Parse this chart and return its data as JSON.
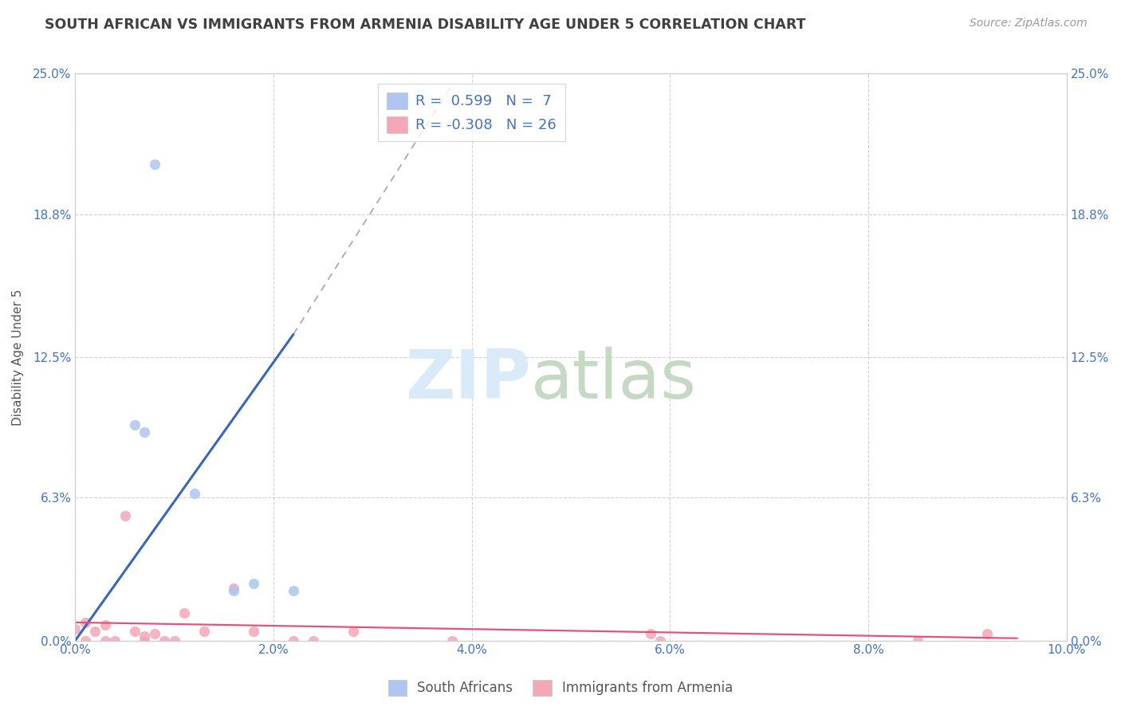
{
  "title": "SOUTH AFRICAN VS IMMIGRANTS FROM ARMENIA DISABILITY AGE UNDER 5 CORRELATION CHART",
  "source": "Source: ZipAtlas.com",
  "xlabel": "",
  "ylabel": "Disability Age Under 5",
  "xlim": [
    0.0,
    0.1
  ],
  "ylim": [
    0.0,
    0.25
  ],
  "xtick_labels": [
    "0.0%",
    "2.0%",
    "4.0%",
    "6.0%",
    "8.0%",
    "10.0%"
  ],
  "xtick_vals": [
    0.0,
    0.02,
    0.04,
    0.06,
    0.08,
    0.1
  ],
  "ytick_labels": [
    "0.0%",
    "6.3%",
    "12.5%",
    "18.8%",
    "25.0%"
  ],
  "ytick_vals": [
    0.0,
    0.063,
    0.125,
    0.188,
    0.25
  ],
  "right_ytick_labels": [
    "25.0%",
    "18.8%",
    "12.5%",
    "6.3%",
    "0.0%"
  ],
  "sa_color": "#aec6f0",
  "arm_color": "#f4a7b9",
  "sa_r": 0.599,
  "sa_n": 7,
  "arm_r": -0.308,
  "arm_n": 26,
  "legend_r1": "R =  0.599   N =  7",
  "legend_r2": "R = -0.308   N = 26",
  "sa_scatter_x": [
    0.008,
    0.006,
    0.007,
    0.012,
    0.016,
    0.018,
    0.022
  ],
  "sa_scatter_y": [
    0.21,
    0.095,
    0.092,
    0.065,
    0.022,
    0.025,
    0.022
  ],
  "arm_scatter_x": [
    0.0,
    0.001,
    0.001,
    0.002,
    0.003,
    0.003,
    0.004,
    0.005,
    0.006,
    0.007,
    0.007,
    0.008,
    0.009,
    0.01,
    0.011,
    0.013,
    0.016,
    0.018,
    0.022,
    0.024,
    0.028,
    0.038,
    0.058,
    0.059,
    0.085,
    0.092
  ],
  "arm_scatter_y": [
    0.005,
    0.0,
    0.008,
    0.004,
    0.0,
    0.007,
    0.0,
    0.055,
    0.004,
    0.002,
    0.0,
    0.003,
    0.0,
    0.0,
    0.012,
    0.004,
    0.023,
    0.004,
    0.0,
    0.0,
    0.004,
    0.0,
    0.003,
    0.0,
    0.0,
    0.003
  ],
  "sa_line_x": [
    0.0,
    0.022
  ],
  "sa_line_y": [
    0.0,
    0.135
  ],
  "arm_line_x": [
    0.0,
    0.095
  ],
  "arm_line_y": [
    0.008,
    0.001
  ],
  "dash_line_x": [
    0.022,
    0.038
  ],
  "dash_line_y": [
    0.135,
    0.245
  ],
  "background_color": "#ffffff",
  "grid_color": "#cccccc",
  "title_color": "#404040",
  "axis_color": "#4472c4",
  "watermark_zip_color": "#daeaf8",
  "watermark_atlas_color": "#c5d9c5",
  "legend_text_color": "#4472c4"
}
